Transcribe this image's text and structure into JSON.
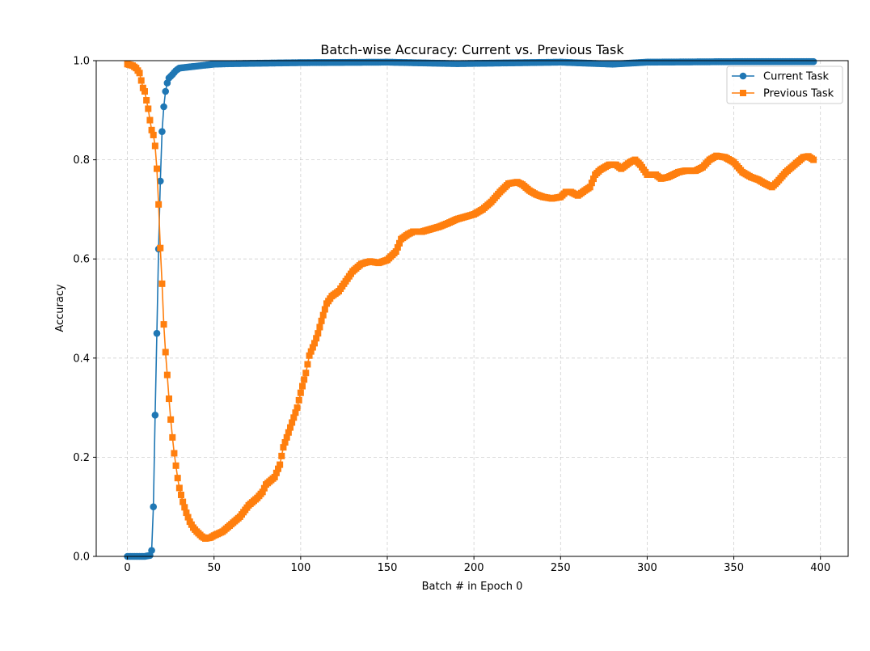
{
  "chart_data": {
    "type": "line",
    "title": "Batch-wise Accuracy: Current vs. Previous Task",
    "xlabel": "Batch # in Epoch 0",
    "ylabel": "Accuracy",
    "xlim": [
      -18,
      416
    ],
    "ylim": [
      0,
      1.0
    ],
    "xticks": [
      0,
      50,
      100,
      150,
      200,
      250,
      300,
      350,
      400
    ],
    "yticks": [
      0.0,
      0.2,
      0.4,
      0.6,
      0.8,
      1.0
    ],
    "xtick_labels": [
      "0",
      "50",
      "100",
      "150",
      "200",
      "250",
      "300",
      "350",
      "400"
    ],
    "ytick_labels": [
      "0.0",
      "0.2",
      "0.4",
      "0.6",
      "0.8",
      "1.0"
    ],
    "grid": true,
    "legend_position": "top-right",
    "series": [
      {
        "name": "Current Task",
        "color": "#1f77b4",
        "marker": "circle",
        "points": [
          [
            0,
            0.0
          ],
          [
            5,
            0.0
          ],
          [
            10,
            0.0
          ],
          [
            13,
            0.002
          ],
          [
            14,
            0.012
          ],
          [
            15,
            0.1
          ],
          [
            16,
            0.285
          ],
          [
            17,
            0.45
          ],
          [
            18,
            0.62
          ],
          [
            19,
            0.757
          ],
          [
            20,
            0.857
          ],
          [
            21,
            0.907
          ],
          [
            22,
            0.938
          ],
          [
            23,
            0.955
          ],
          [
            24,
            0.965
          ],
          [
            26,
            0.972
          ],
          [
            28,
            0.98
          ],
          [
            30,
            0.985
          ],
          [
            35,
            0.987
          ],
          [
            40,
            0.989
          ],
          [
            50,
            0.993
          ],
          [
            60,
            0.994
          ],
          [
            100,
            0.996
          ],
          [
            150,
            0.997
          ],
          [
            190,
            0.994
          ],
          [
            250,
            0.997
          ],
          [
            280,
            0.993
          ],
          [
            300,
            0.997
          ],
          [
            350,
            0.998
          ],
          [
            396,
            0.998
          ]
        ]
      },
      {
        "name": "Previous Task",
        "color": "#ff7f0e",
        "marker": "square",
        "points": [
          [
            0,
            0.993
          ],
          [
            3,
            0.99
          ],
          [
            5,
            0.985
          ],
          [
            7,
            0.975
          ],
          [
            8,
            0.96
          ],
          [
            9,
            0.945
          ],
          [
            10,
            0.938
          ],
          [
            11,
            0.92
          ],
          [
            12,
            0.903
          ],
          [
            13,
            0.88
          ],
          [
            14,
            0.86
          ],
          [
            15,
            0.85
          ],
          [
            16,
            0.828
          ],
          [
            17,
            0.782
          ],
          [
            18,
            0.71
          ],
          [
            19,
            0.622
          ],
          [
            20,
            0.55
          ],
          [
            21,
            0.468
          ],
          [
            22,
            0.412
          ],
          [
            23,
            0.366
          ],
          [
            24,
            0.318
          ],
          [
            25,
            0.276
          ],
          [
            26,
            0.24
          ],
          [
            27,
            0.208
          ],
          [
            28,
            0.183
          ],
          [
            29,
            0.158
          ],
          [
            30,
            0.138
          ],
          [
            32,
            0.11
          ],
          [
            34,
            0.088
          ],
          [
            36,
            0.07
          ],
          [
            38,
            0.058
          ],
          [
            40,
            0.05
          ],
          [
            43,
            0.04
          ],
          [
            45,
            0.036
          ],
          [
            48,
            0.038
          ],
          [
            50,
            0.042
          ],
          [
            55,
            0.05
          ],
          [
            60,
            0.065
          ],
          [
            65,
            0.08
          ],
          [
            70,
            0.103
          ],
          [
            75,
            0.118
          ],
          [
            78,
            0.13
          ],
          [
            80,
            0.145
          ],
          [
            85,
            0.16
          ],
          [
            88,
            0.185
          ],
          [
            90,
            0.22
          ],
          [
            92,
            0.24
          ],
          [
            95,
            0.27
          ],
          [
            98,
            0.3
          ],
          [
            100,
            0.33
          ],
          [
            103,
            0.37
          ],
          [
            105,
            0.405
          ],
          [
            108,
            0.43
          ],
          [
            110,
            0.45
          ],
          [
            112,
            0.475
          ],
          [
            115,
            0.51
          ],
          [
            118,
            0.525
          ],
          [
            120,
            0.53
          ],
          [
            122,
            0.535
          ],
          [
            125,
            0.55
          ],
          [
            130,
            0.575
          ],
          [
            135,
            0.59
          ],
          [
            140,
            0.595
          ],
          [
            145,
            0.592
          ],
          [
            150,
            0.598
          ],
          [
            155,
            0.615
          ],
          [
            158,
            0.64
          ],
          [
            162,
            0.65
          ],
          [
            165,
            0.655
          ],
          [
            170,
            0.655
          ],
          [
            175,
            0.66
          ],
          [
            180,
            0.665
          ],
          [
            185,
            0.672
          ],
          [
            190,
            0.68
          ],
          [
            195,
            0.685
          ],
          [
            200,
            0.69
          ],
          [
            205,
            0.7
          ],
          [
            210,
            0.715
          ],
          [
            215,
            0.735
          ],
          [
            220,
            0.752
          ],
          [
            225,
            0.755
          ],
          [
            228,
            0.75
          ],
          [
            232,
            0.738
          ],
          [
            236,
            0.73
          ],
          [
            240,
            0.725
          ],
          [
            245,
            0.722
          ],
          [
            250,
            0.725
          ],
          [
            253,
            0.735
          ],
          [
            256,
            0.735
          ],
          [
            260,
            0.728
          ],
          [
            264,
            0.738
          ],
          [
            267,
            0.745
          ],
          [
            270,
            0.77
          ],
          [
            273,
            0.78
          ],
          [
            278,
            0.79
          ],
          [
            282,
            0.79
          ],
          [
            285,
            0.782
          ],
          [
            290,
            0.795
          ],
          [
            293,
            0.8
          ],
          [
            296,
            0.79
          ],
          [
            300,
            0.77
          ],
          [
            305,
            0.77
          ],
          [
            308,
            0.762
          ],
          [
            312,
            0.765
          ],
          [
            318,
            0.775
          ],
          [
            322,
            0.778
          ],
          [
            328,
            0.778
          ],
          [
            332,
            0.785
          ],
          [
            336,
            0.8
          ],
          [
            340,
            0.808
          ],
          [
            345,
            0.805
          ],
          [
            350,
            0.795
          ],
          [
            355,
            0.775
          ],
          [
            360,
            0.765
          ],
          [
            364,
            0.76
          ],
          [
            368,
            0.752
          ],
          [
            372,
            0.745
          ],
          [
            375,
            0.755
          ],
          [
            380,
            0.775
          ],
          [
            385,
            0.79
          ],
          [
            390,
            0.805
          ],
          [
            393,
            0.807
          ],
          [
            396,
            0.8
          ]
        ]
      }
    ]
  }
}
